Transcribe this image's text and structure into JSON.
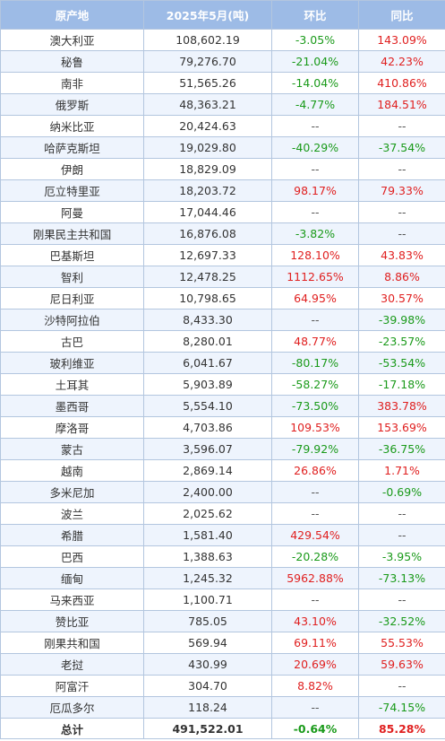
{
  "header": {
    "origin": "原产地",
    "volume": "2025年5月(吨)",
    "mom": "环比",
    "yoy": "同比"
  },
  "rows": [
    {
      "origin": "澳大利亚",
      "volume": "108,602.19",
      "mom": "-3.05%",
      "yoy": "143.09%"
    },
    {
      "origin": "秘鲁",
      "volume": "79,276.70",
      "mom": "-21.04%",
      "yoy": "42.23%"
    },
    {
      "origin": "南非",
      "volume": "51,565.26",
      "mom": "-14.04%",
      "yoy": "410.86%"
    },
    {
      "origin": "俄罗斯",
      "volume": "48,363.21",
      "mom": "-4.77%",
      "yoy": "184.51%"
    },
    {
      "origin": "纳米比亚",
      "volume": "20,424.63",
      "mom": "--",
      "yoy": "--"
    },
    {
      "origin": "哈萨克斯坦",
      "volume": "19,029.80",
      "mom": "-40.29%",
      "yoy": "-37.54%"
    },
    {
      "origin": "伊朗",
      "volume": "18,829.09",
      "mom": "--",
      "yoy": "--"
    },
    {
      "origin": "厄立特里亚",
      "volume": "18,203.72",
      "mom": "98.17%",
      "yoy": "79.33%"
    },
    {
      "origin": "阿曼",
      "volume": "17,044.46",
      "mom": "--",
      "yoy": "--"
    },
    {
      "origin": "刚果民主共和国",
      "volume": "16,876.08",
      "mom": "-3.82%",
      "yoy": "--"
    },
    {
      "origin": "巴基斯坦",
      "volume": "12,697.33",
      "mom": "128.10%",
      "yoy": "43.83%"
    },
    {
      "origin": "智利",
      "volume": "12,478.25",
      "mom": "1112.65%",
      "yoy": "8.86%"
    },
    {
      "origin": "尼日利亚",
      "volume": "10,798.65",
      "mom": "64.95%",
      "yoy": "30.57%"
    },
    {
      "origin": "沙特阿拉伯",
      "volume": "8,433.30",
      "mom": "--",
      "yoy": "-39.98%"
    },
    {
      "origin": "古巴",
      "volume": "8,280.01",
      "mom": "48.77%",
      "yoy": "-23.57%"
    },
    {
      "origin": "玻利维亚",
      "volume": "6,041.67",
      "mom": "-80.17%",
      "yoy": "-53.54%"
    },
    {
      "origin": "土耳其",
      "volume": "5,903.89",
      "mom": "-58.27%",
      "yoy": "-17.18%"
    },
    {
      "origin": "墨西哥",
      "volume": "5,554.10",
      "mom": "-73.50%",
      "yoy": "383.78%"
    },
    {
      "origin": "摩洛哥",
      "volume": "4,703.86",
      "mom": "109.53%",
      "yoy": "153.69%"
    },
    {
      "origin": "蒙古",
      "volume": "3,596.07",
      "mom": "-79.92%",
      "yoy": "-36.75%"
    },
    {
      "origin": "越南",
      "volume": "2,869.14",
      "mom": "26.86%",
      "yoy": "1.71%"
    },
    {
      "origin": "多米尼加",
      "volume": "2,400.00",
      "mom": "--",
      "yoy": "-0.69%"
    },
    {
      "origin": "波兰",
      "volume": "2,025.62",
      "mom": "--",
      "yoy": "--"
    },
    {
      "origin": "希腊",
      "volume": "1,581.40",
      "mom": "429.54%",
      "yoy": "--"
    },
    {
      "origin": "巴西",
      "volume": "1,388.63",
      "mom": "-20.28%",
      "yoy": "-3.95%"
    },
    {
      "origin": "缅甸",
      "volume": "1,245.32",
      "mom": "5962.88%",
      "yoy": "-73.13%"
    },
    {
      "origin": "马来西亚",
      "volume": "1,100.71",
      "mom": "--",
      "yoy": "--"
    },
    {
      "origin": "赞比亚",
      "volume": "785.05",
      "mom": "43.10%",
      "yoy": "-32.52%"
    },
    {
      "origin": "刚果共和国",
      "volume": "569.94",
      "mom": "69.11%",
      "yoy": "55.53%"
    },
    {
      "origin": "老挝",
      "volume": "430.99",
      "mom": "20.69%",
      "yoy": "59.63%"
    },
    {
      "origin": "阿富汗",
      "volume": "304.70",
      "mom": "8.82%",
      "yoy": "--"
    },
    {
      "origin": "厄瓜多尔",
      "volume": "118.24",
      "mom": "--",
      "yoy": "-74.15%"
    }
  ],
  "total": {
    "origin": "总计",
    "volume": "491,522.01",
    "mom": "-0.64%",
    "yoy": "85.28%"
  },
  "colors": {
    "header_bg": "#9dbbe6",
    "stripe_bg": "#eef4fd",
    "border": "#b3c6df",
    "positive": "#e02020",
    "negative": "#1a9a1a"
  }
}
